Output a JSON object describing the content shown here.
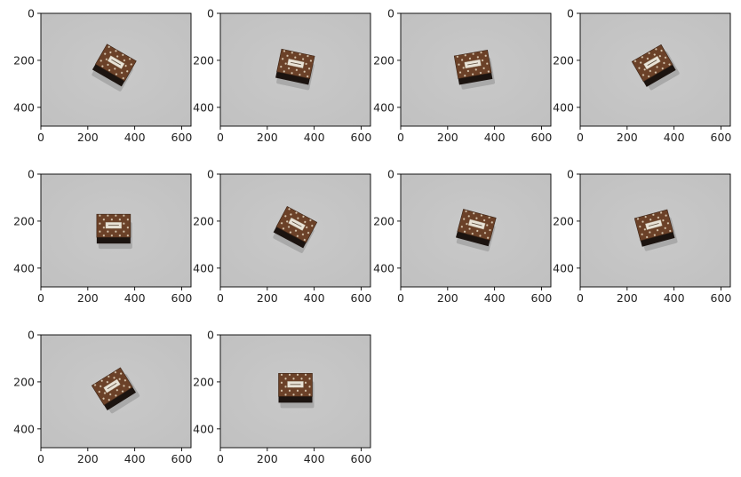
{
  "figure": {
    "layout": "image grid, 3 rows x 4 columns (10 panels)",
    "panel_count": 10
  },
  "axes_ticks": {
    "x_ticks": [
      "0",
      "200",
      "400",
      "600"
    ],
    "y_ticks": [
      "0",
      "200",
      "400"
    ],
    "x_range": [
      0,
      640
    ],
    "y_range": [
      480,
      0
    ]
  },
  "colors": {
    "background": "#c5c5c5",
    "box_brown": "#6b4128",
    "box_dark": "#1c1410",
    "label_cream": "#e8e2d6",
    "shadow": "#8f8f8f"
  },
  "panels": [
    {
      "subject": "brown box with dot pattern and label",
      "center_x": 312,
      "center_y": 223,
      "rotation_deg": 30
    },
    {
      "subject": "brown box with dot pattern and label",
      "center_x": 318,
      "center_y": 230,
      "rotation_deg": 12
    },
    {
      "subject": "brown box with dot pattern and label",
      "center_x": 310,
      "center_y": 232,
      "rotation_deg": -10
    },
    {
      "subject": "brown box with dot pattern and label",
      "center_x": 315,
      "center_y": 225,
      "rotation_deg": -30
    },
    {
      "subject": "brown box with dot pattern and label",
      "center_x": 310,
      "center_y": 235,
      "rotation_deg": 0
    },
    {
      "subject": "brown box with dot pattern and label",
      "center_x": 318,
      "center_y": 228,
      "rotation_deg": 28
    },
    {
      "subject": "brown box with dot pattern and label",
      "center_x": 320,
      "center_y": 230,
      "rotation_deg": 15
    },
    {
      "subject": "brown box with dot pattern and label",
      "center_x": 318,
      "center_y": 232,
      "rotation_deg": -15
    },
    {
      "subject": "brown box with dot pattern and label",
      "center_x": 312,
      "center_y": 232,
      "rotation_deg": -32
    },
    {
      "subject": "brown box with dot pattern and label",
      "center_x": 320,
      "center_y": 228,
      "rotation_deg": 0
    }
  ]
}
